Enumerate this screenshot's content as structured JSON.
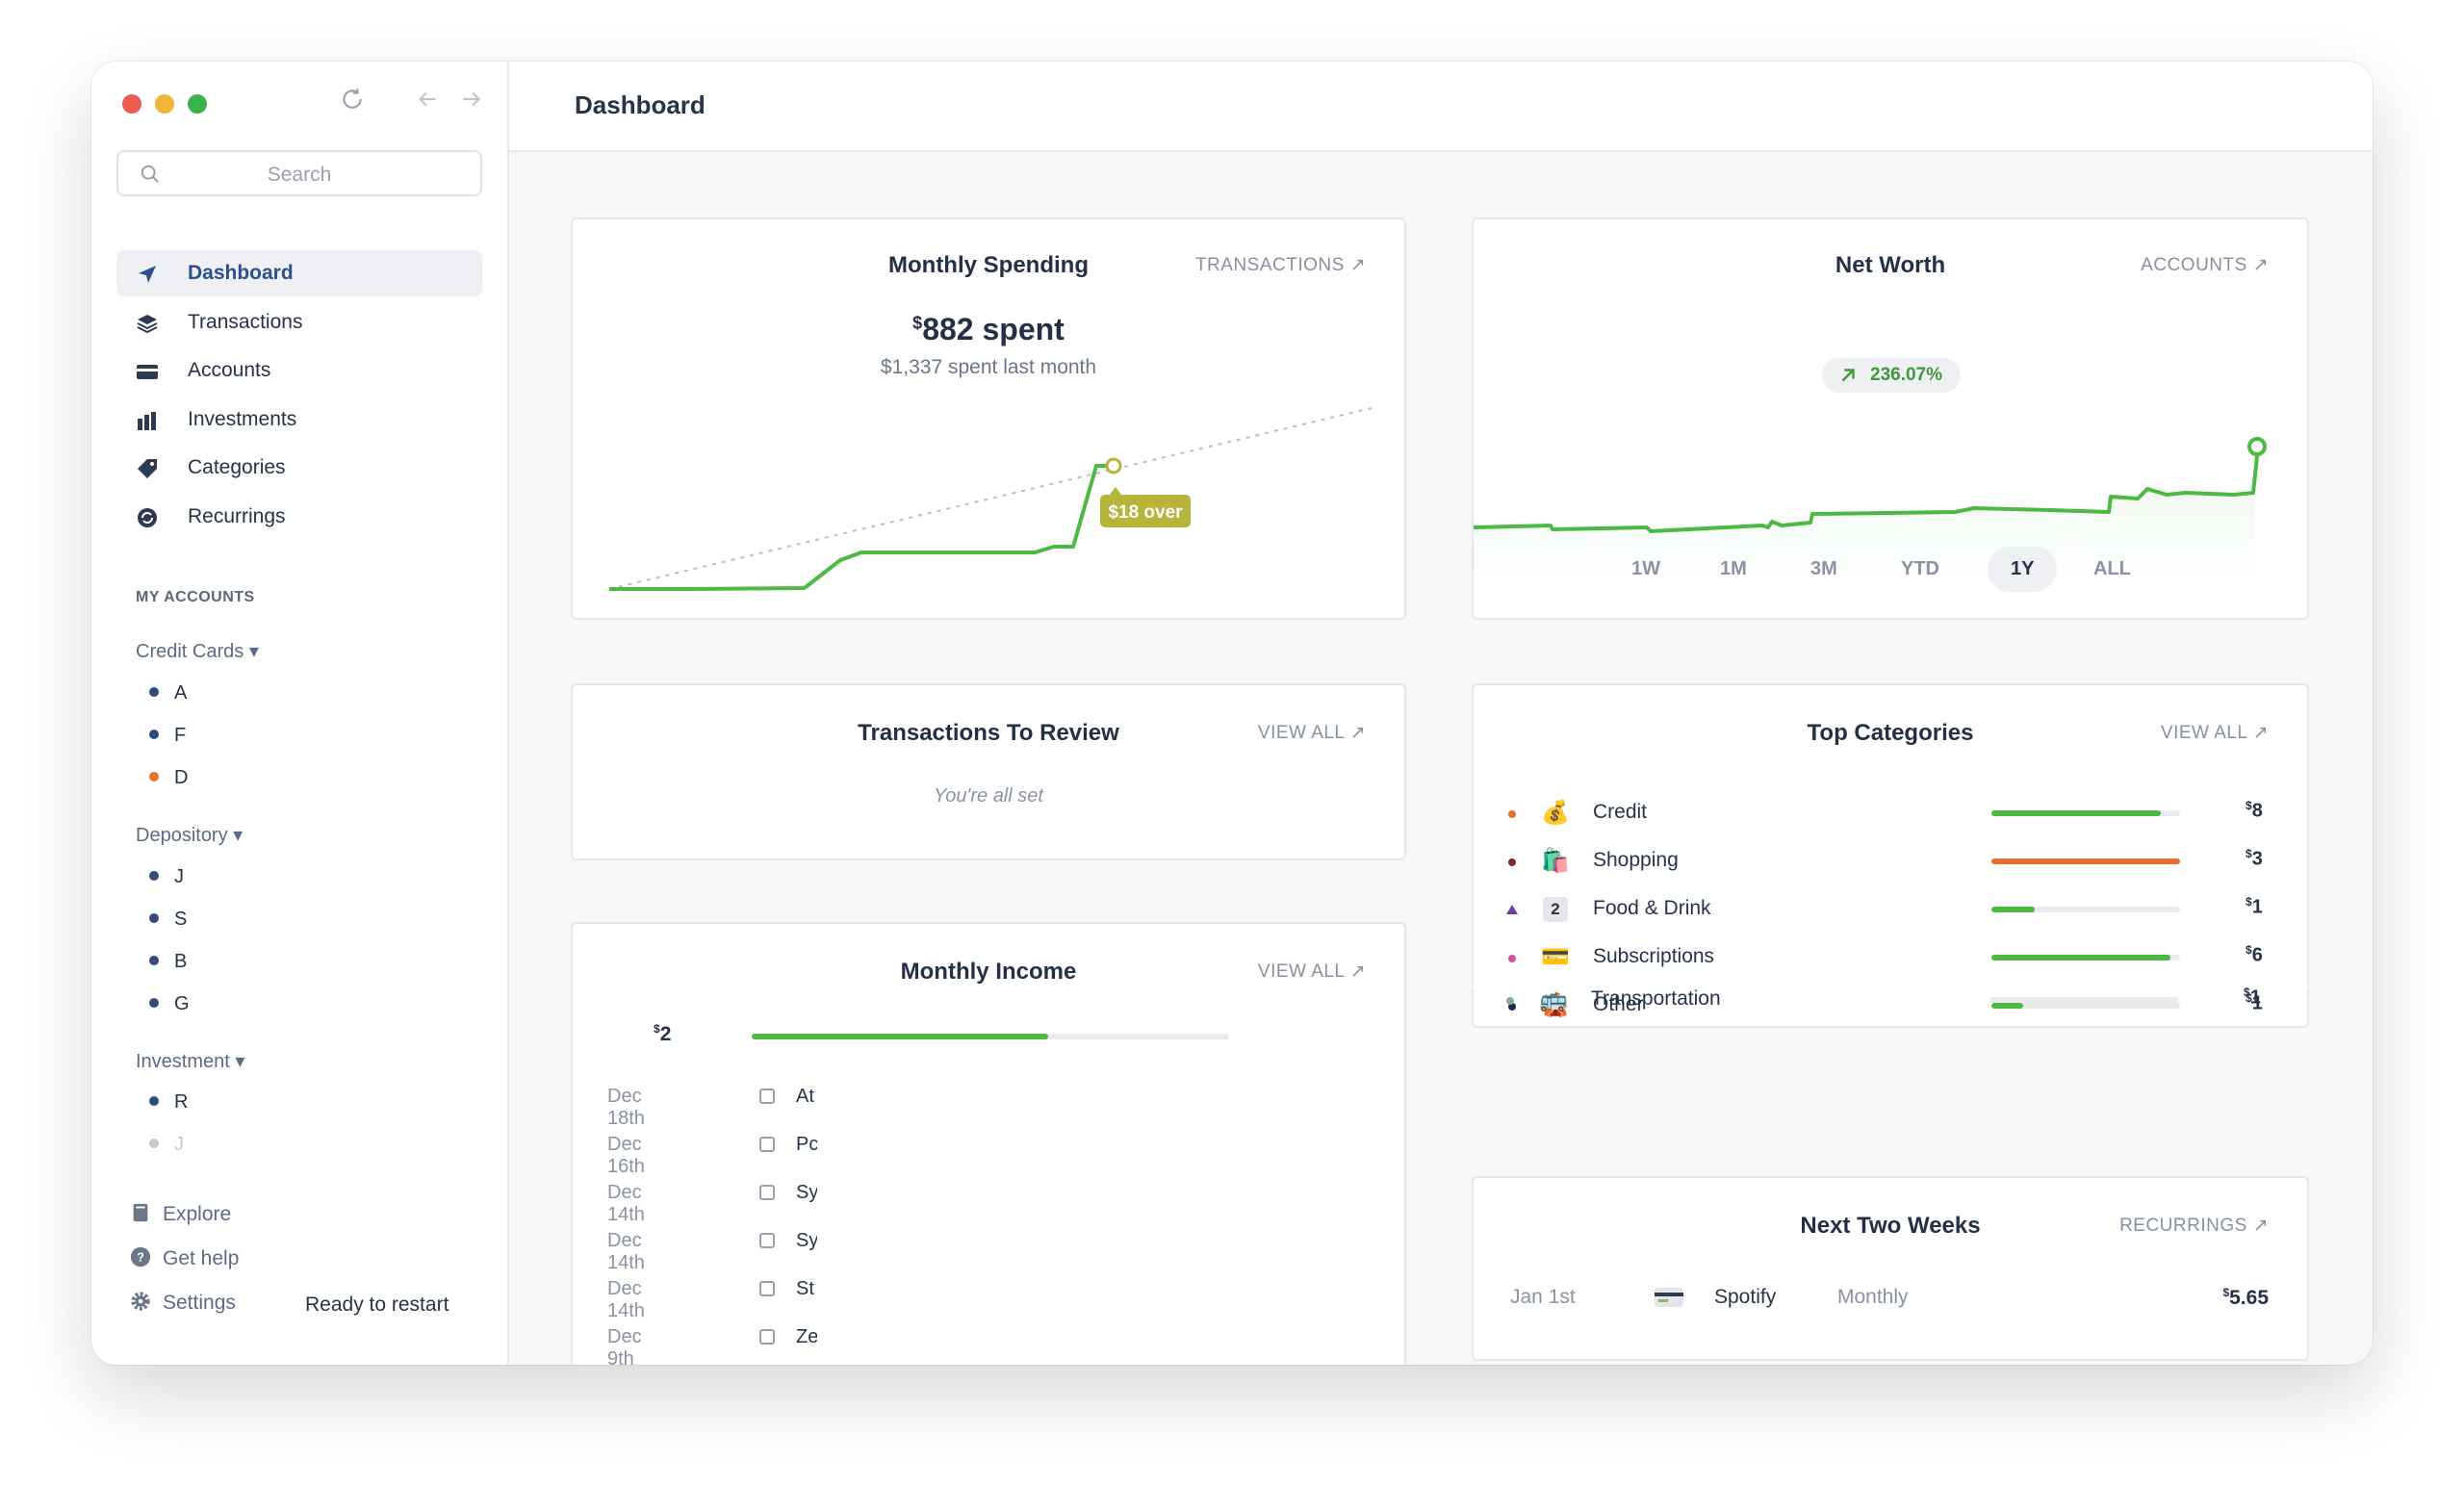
{
  "window": {
    "title": "Dashboard"
  },
  "sidebar": {
    "search_placeholder": "Search",
    "nav": [
      {
        "label": "Dashboard",
        "icon": "navigation-arrow-icon",
        "active": true
      },
      {
        "label": "Transactions",
        "icon": "layers-icon"
      },
      {
        "label": "Accounts",
        "icon": "credit-card-icon"
      },
      {
        "label": "Investments",
        "icon": "bar-chart-icon"
      },
      {
        "label": "Categories",
        "icon": "tag-icon"
      },
      {
        "label": "Recurrings",
        "icon": "recurring-icon"
      }
    ],
    "my_accounts_label": "MY ACCOUNTS",
    "groups": [
      {
        "label": "Credit Cards ▾",
        "items": [
          {
            "name": "A",
            "color": "#2f4b7c"
          },
          {
            "name": "F",
            "color": "#2f4b7c"
          },
          {
            "name": "D",
            "color": "#e86f2c"
          }
        ]
      },
      {
        "label": "Depository ▾",
        "items": [
          {
            "name": "J",
            "color": "#2f4b7c"
          },
          {
            "name": "S",
            "color": "#2f4b7c"
          },
          {
            "name": "B",
            "color": "#2f4b7c"
          },
          {
            "name": "G",
            "color": "#2f4b7c"
          }
        ]
      },
      {
        "label": "Investment ▾",
        "items": [
          {
            "name": "R",
            "color": "#2f4b7c"
          },
          {
            "name": "J",
            "color": "#c4cad4"
          }
        ]
      }
    ],
    "footer": {
      "explore": "Explore",
      "help": "Get help",
      "settings": "Settings",
      "status": "Ready to restart"
    }
  },
  "monthly_spending": {
    "title": "Monthly Spending",
    "link": "TRANSACTIONS ↗",
    "currency": "$",
    "amount": "882 spent",
    "subtitle": "$1,337 spent last month",
    "badge": "$18 over",
    "colors": {
      "line": "#4cb943",
      "badge": "#b7b43a"
    }
  },
  "net_worth": {
    "title": "Net Worth",
    "link": "ACCOUNTS ↗",
    "change": "236.07%",
    "timeframes": [
      "1W",
      "1M",
      "3M",
      "YTD",
      "1Y",
      "ALL"
    ],
    "selected_timeframe": "1Y"
  },
  "review": {
    "title": "Transactions To Review",
    "link": "VIEW ALL ↗",
    "empty": "You're all set"
  },
  "top_categories": {
    "title": "Top Categories",
    "link": "VIEW ALL ↗",
    "items": [
      {
        "label": "Credit",
        "icon": "money-bag-icon",
        "emoji": "💰",
        "dot": "#e86f2c",
        "amount": "8",
        "fill": 0.9,
        "bar": "#4cb943"
      },
      {
        "label": "Shopping",
        "icon": "shopping-bags-icon",
        "emoji": "🛍️",
        "dot": "#7a2a2a",
        "amount": "3",
        "fill": 1.0,
        "bar": "#e86f2c"
      },
      {
        "label": "Food & Drink",
        "icon": "number-two-icon",
        "emoji": "2",
        "dot": "#6b3fa0",
        "amount": "1",
        "fill": 0.23,
        "bar": "#4cb943"
      },
      {
        "label": "Subscriptions",
        "icon": "card-icon",
        "emoji": "💳",
        "dot": "#d94fa0",
        "amount": "6",
        "fill": 0.95,
        "bar": "#4cb943"
      },
      {
        "label": "Other",
        "icon": "circus-icon",
        "emoji": "🎪",
        "dot": "#1f2c4d",
        "amount": "1",
        "fill": 0.17,
        "bar": "#4cb943"
      },
      {
        "label": "Transportation",
        "icon": "bus-icon",
        "emoji": "🚌",
        "dot": "#7fb08d",
        "amount": "1",
        "fill": 0.0,
        "bar": "#4cb943"
      }
    ]
  },
  "monthly_income": {
    "title": "Monthly Income",
    "link": "VIEW ALL ↗",
    "amount": "2",
    "progress": 0.62,
    "rows": [
      {
        "date": "Dec 18th",
        "name": "At"
      },
      {
        "date": "Dec 16th",
        "name": "Pc"
      },
      {
        "date": "Dec 14th",
        "name": "Sy"
      },
      {
        "date": "Dec 14th",
        "name": "Sy"
      },
      {
        "date": "Dec 14th",
        "name": "St"
      },
      {
        "date": "Dec 9th",
        "name": "Ze"
      }
    ]
  },
  "next_two_weeks": {
    "title": "Next Two Weeks",
    "link": "RECURRINGS ↗",
    "items": [
      {
        "date": "Jan 1st",
        "name": "Spotify",
        "frequency": "Monthly",
        "amount": "5.65",
        "icon": "card-icon"
      }
    ]
  }
}
